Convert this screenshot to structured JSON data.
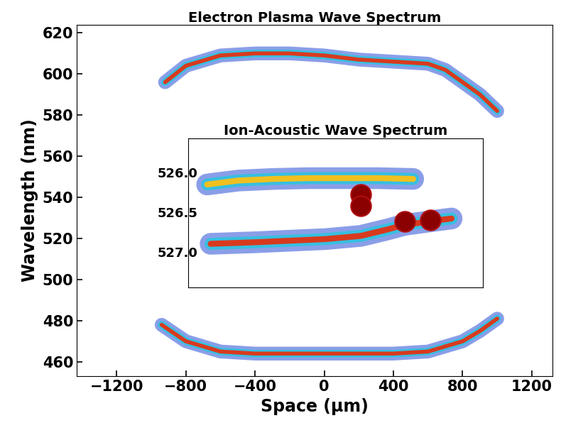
{
  "chart_data": [
    {
      "type": "line",
      "title": "Electron Plasma Wave Spectrum",
      "x_label": "Space (μm)",
      "y_label": "Wavelength (nm)",
      "xlim": [
        -1430,
        1320
      ],
      "ylim": [
        453,
        624
      ],
      "xticks": [
        {
          "value": -1200,
          "label": "−1200"
        },
        {
          "value": -800,
          "label": "−800"
        },
        {
          "value": -400,
          "label": "−400"
        },
        0,
        400,
        800,
        1200
      ],
      "yticks": [
        460,
        480,
        500,
        520,
        540,
        560,
        580,
        600,
        620
      ],
      "series": [
        {
          "color": "#d83a1e",
          "x": [
            -920,
            -800,
            -600,
            -400,
            -200,
            0,
            200,
            400,
            600,
            700,
            800,
            900,
            1000
          ],
          "values": [
            596,
            604,
            609,
            610,
            610,
            609,
            607,
            606,
            605,
            602,
            596,
            590,
            582
          ]
        },
        {
          "color": "#d83a1e",
          "x": [
            -940,
            -800,
            -600,
            -400,
            -200,
            0,
            200,
            400,
            600,
            800,
            900,
            1000
          ],
          "values": [
            478,
            470,
            465,
            464,
            464,
            464,
            464,
            464,
            465,
            470,
            475,
            481
          ]
        }
      ]
    },
    {
      "type": "line",
      "title": "Ion-Acoustic Wave Spectrum",
      "xlim": [
        -790,
        900
      ],
      "ylim": [
        527.45,
        525.57
      ],
      "yticks": [
        {
          "value": 526.0,
          "label": "526.0"
        },
        {
          "value": 526.5,
          "label": "526.5"
        },
        {
          "value": 527.0,
          "label": "527.0"
        }
      ],
      "tick_labels": "y",
      "series": [
        {
          "color": "#f0c020",
          "x": [
            -680,
            -500,
            -300,
            -100,
            100,
            300,
            500
          ],
          "values": [
            526.15,
            526.1,
            526.08,
            526.07,
            526.07,
            526.07,
            526.08
          ]
        },
        {
          "color": "#d83a1e",
          "x": [
            -660,
            -400,
            -200,
            0,
            200,
            350,
            450,
            550,
            650,
            720
          ],
          "values": [
            526.9,
            526.88,
            526.86,
            526.84,
            526.8,
            526.72,
            526.66,
            526.63,
            526.6,
            526.58
          ]
        },
        {
          "type": "scatter",
          "color": "#8b0000",
          "x": [
            200,
            200,
            450,
            600
          ],
          "values": [
            526.28,
            526.42,
            526.62,
            526.6
          ]
        }
      ]
    }
  ]
}
